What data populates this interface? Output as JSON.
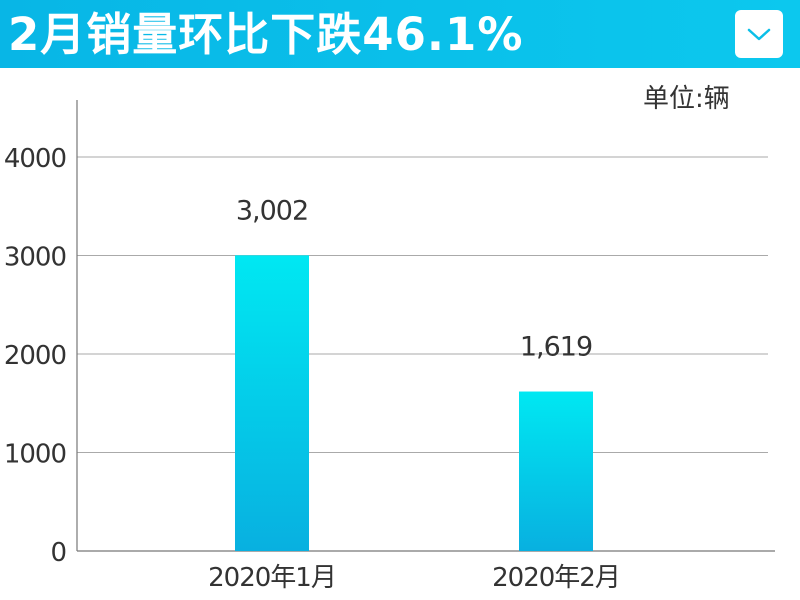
{
  "header": {
    "title": "2月销量环比下跌46.1%",
    "dropdown_icon": "chevron-down-icon",
    "background_color": "#08b6e6"
  },
  "unit_label": "单位:辆",
  "chart_data": {
    "type": "bar",
    "title": "2月销量环比下跌46.1%",
    "xlabel": "",
    "ylabel": "",
    "categories": [
      "2020年1月",
      "2020年2月"
    ],
    "values": [
      3002,
      1619
    ],
    "value_labels": [
      "3,002",
      "1,619"
    ],
    "yticks": [
      0,
      1000,
      2000,
      3000,
      4000
    ],
    "ytick_labels": [
      "0",
      "1000",
      "2000",
      "3000",
      "4000"
    ],
    "ylim": [
      0,
      4000
    ],
    "grid": true,
    "unit": "单位:辆",
    "bar_color_top": "#00e8f2",
    "bar_color_bottom": "#08b0e0"
  }
}
